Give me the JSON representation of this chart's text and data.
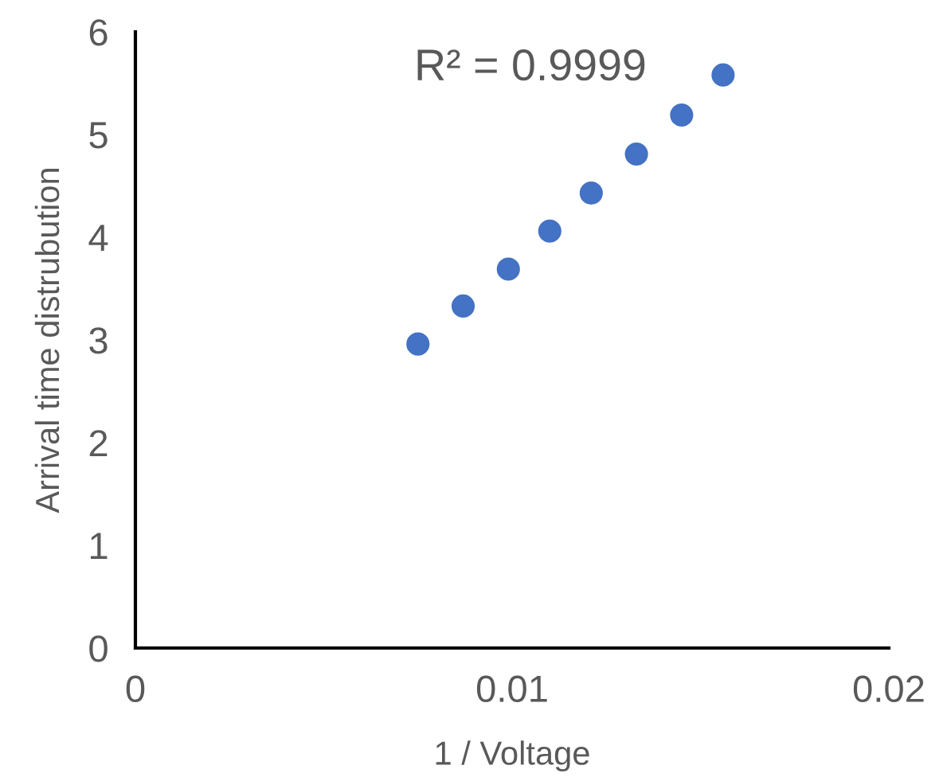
{
  "chart_data": {
    "type": "scatter",
    "xlabel": "1 / Voltage",
    "ylabel": "Arrival time distrubution",
    "annotations": [
      "R² = 0.9999"
    ],
    "x": [
      0.0075,
      0.0087,
      0.0099,
      0.011,
      0.0121,
      0.0133,
      0.0145,
      0.0156
    ],
    "series": [
      {
        "color": "#4472c4",
        "values": [
          2.96,
          3.33,
          3.69,
          4.06,
          4.43,
          4.81,
          5.19,
          5.58
        ]
      }
    ],
    "xlim": [
      0,
      0.02
    ],
    "ylim": [
      0,
      6
    ],
    "xticks": [
      0,
      0.01,
      0.02
    ],
    "yticks": [
      0,
      1,
      2,
      3,
      4,
      5,
      6
    ],
    "grid": false,
    "legend": false,
    "marker": "circle"
  }
}
